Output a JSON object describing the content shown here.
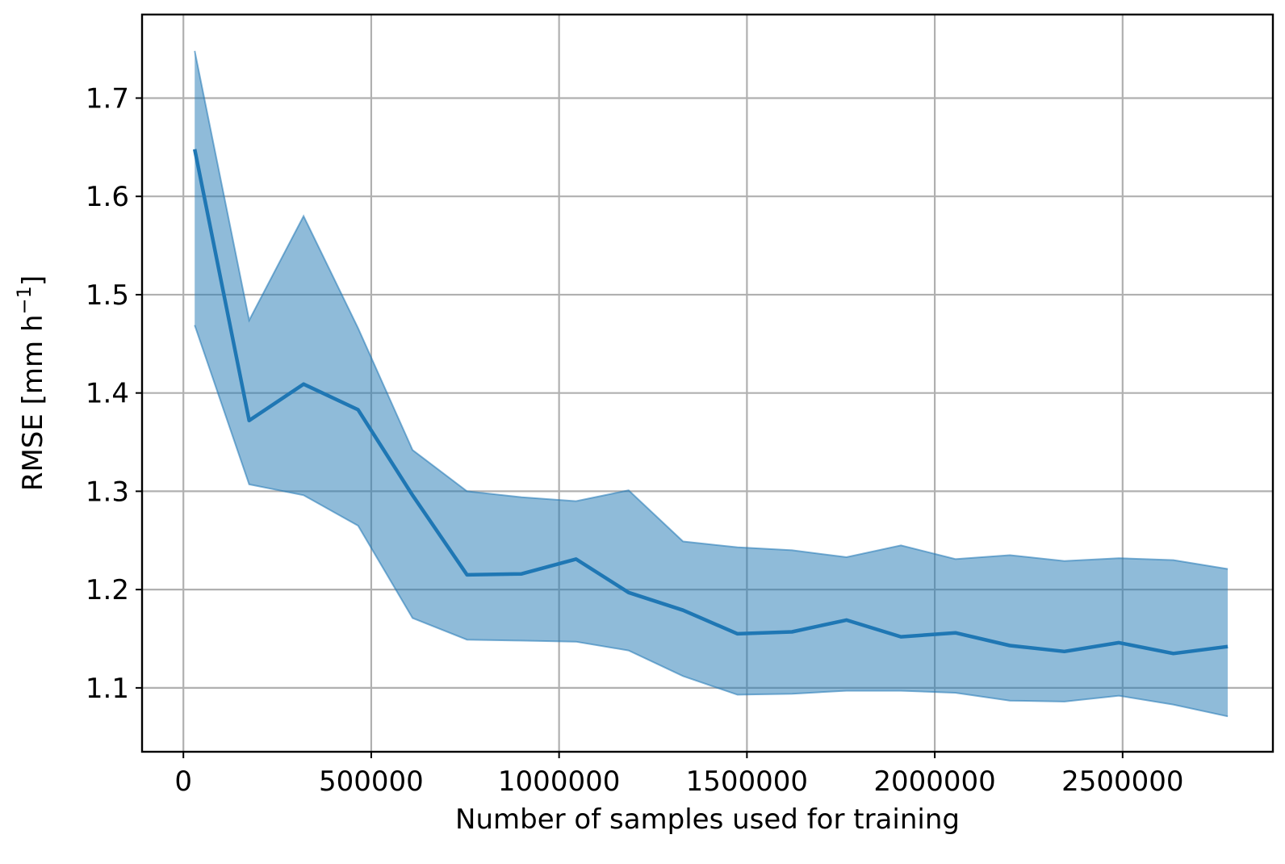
{
  "chart_data": {
    "type": "line",
    "title": "",
    "xlabel": "Number of samples used for training",
    "ylabel_main": "RMSE [mm h",
    "ylabel_sup": "−1",
    "ylabel_end": "]",
    "xlim": [
      -110000,
      2900000
    ],
    "ylim": [
      1.035,
      1.785
    ],
    "x_ticks": [
      0,
      500000,
      1000000,
      1500000,
      2000000,
      2500000
    ],
    "x_tick_labels": [
      "0",
      "500000",
      "1000000",
      "1500000",
      "2000000",
      "2500000"
    ],
    "y_ticks": [
      1.1,
      1.2,
      1.3,
      1.4,
      1.5,
      1.6,
      1.7
    ],
    "y_tick_labels": [
      "1.1",
      "1.2",
      "1.3",
      "1.4",
      "1.5",
      "1.6",
      "1.7"
    ],
    "grid": true,
    "colors": {
      "line": "#1f77b4",
      "band": "#1f77b4"
    },
    "series": [
      {
        "x": [
          30000,
          175000,
          320000,
          465000,
          610000,
          755000,
          900000,
          1045000,
          1185000,
          1330000,
          1475000,
          1620000,
          1765000,
          1910000,
          2055000,
          2200000,
          2345000,
          2490000,
          2635000,
          2780000
        ],
        "mean": [
          1.648,
          1.372,
          1.409,
          1.383,
          1.296,
          1.215,
          1.216,
          1.231,
          1.197,
          1.179,
          1.155,
          1.157,
          1.169,
          1.152,
          1.156,
          1.143,
          1.137,
          1.146,
          1.135,
          1.142
        ],
        "upper": [
          1.748,
          1.474,
          1.58,
          1.466,
          1.342,
          1.3,
          1.294,
          1.29,
          1.301,
          1.249,
          1.243,
          1.24,
          1.233,
          1.245,
          1.231,
          1.235,
          1.229,
          1.232,
          1.23,
          1.221
        ],
        "lower": [
          1.469,
          1.307,
          1.296,
          1.265,
          1.171,
          1.149,
          1.148,
          1.147,
          1.138,
          1.112,
          1.093,
          1.094,
          1.097,
          1.097,
          1.095,
          1.087,
          1.086,
          1.092,
          1.083,
          1.071
        ]
      }
    ]
  }
}
